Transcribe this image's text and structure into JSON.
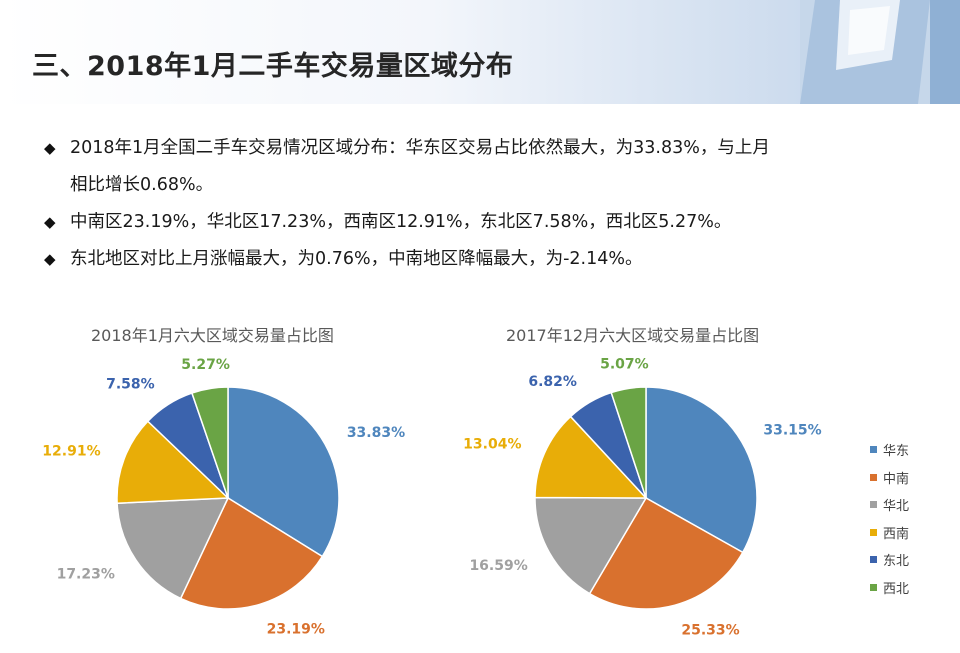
{
  "title": "三、2018年1月二手车交易量区域分布",
  "bullets": [
    {
      "text": "2018年1月全国二手车交易情况区域分布：华东区交易占比依然最大，为33.83%，与上月",
      "cont": "相比增长0.68%。"
    },
    {
      "text": "中南区23.19%，华北区17.23%，西南区12.91%，东北区7.58%，西北区5.27%。",
      "cont": ""
    },
    {
      "text": "东北地区对比上月涨幅最大，为0.76%，中南地区降幅最大，为-2.14%。",
      "cont": ""
    }
  ],
  "colors": {
    "华东": "#4f86bd",
    "中南": "#d9712e",
    "华北": "#a0a0a0",
    "西南": "#e8ad08",
    "东北": "#3b63ad",
    "西北": "#6aa445"
  },
  "legend": [
    "华东",
    "中南",
    "华北",
    "西南",
    "东北",
    "西北"
  ],
  "chart_data": [
    {
      "type": "pie",
      "title": "2018年1月六大区域交易量占比图",
      "categories": [
        "华东",
        "中南",
        "华北",
        "西南",
        "东北",
        "西北"
      ],
      "values": [
        33.83,
        23.19,
        17.23,
        12.91,
        7.58,
        5.27
      ],
      "labels": [
        "33.83%",
        "23.19%",
        "17.23%",
        "12.91%",
        "7.58%",
        "5.27%"
      ]
    },
    {
      "type": "pie",
      "title": "2017年12月六大区域交易量占比图",
      "categories": [
        "华东",
        "中南",
        "华北",
        "西南",
        "东北",
        "西北"
      ],
      "values": [
        33.15,
        25.33,
        16.59,
        13.04,
        6.82,
        5.07
      ],
      "labels": [
        "33.15%",
        "25.33%",
        "16.59%",
        "13.04%",
        "6.82%",
        "5.07%"
      ]
    }
  ]
}
